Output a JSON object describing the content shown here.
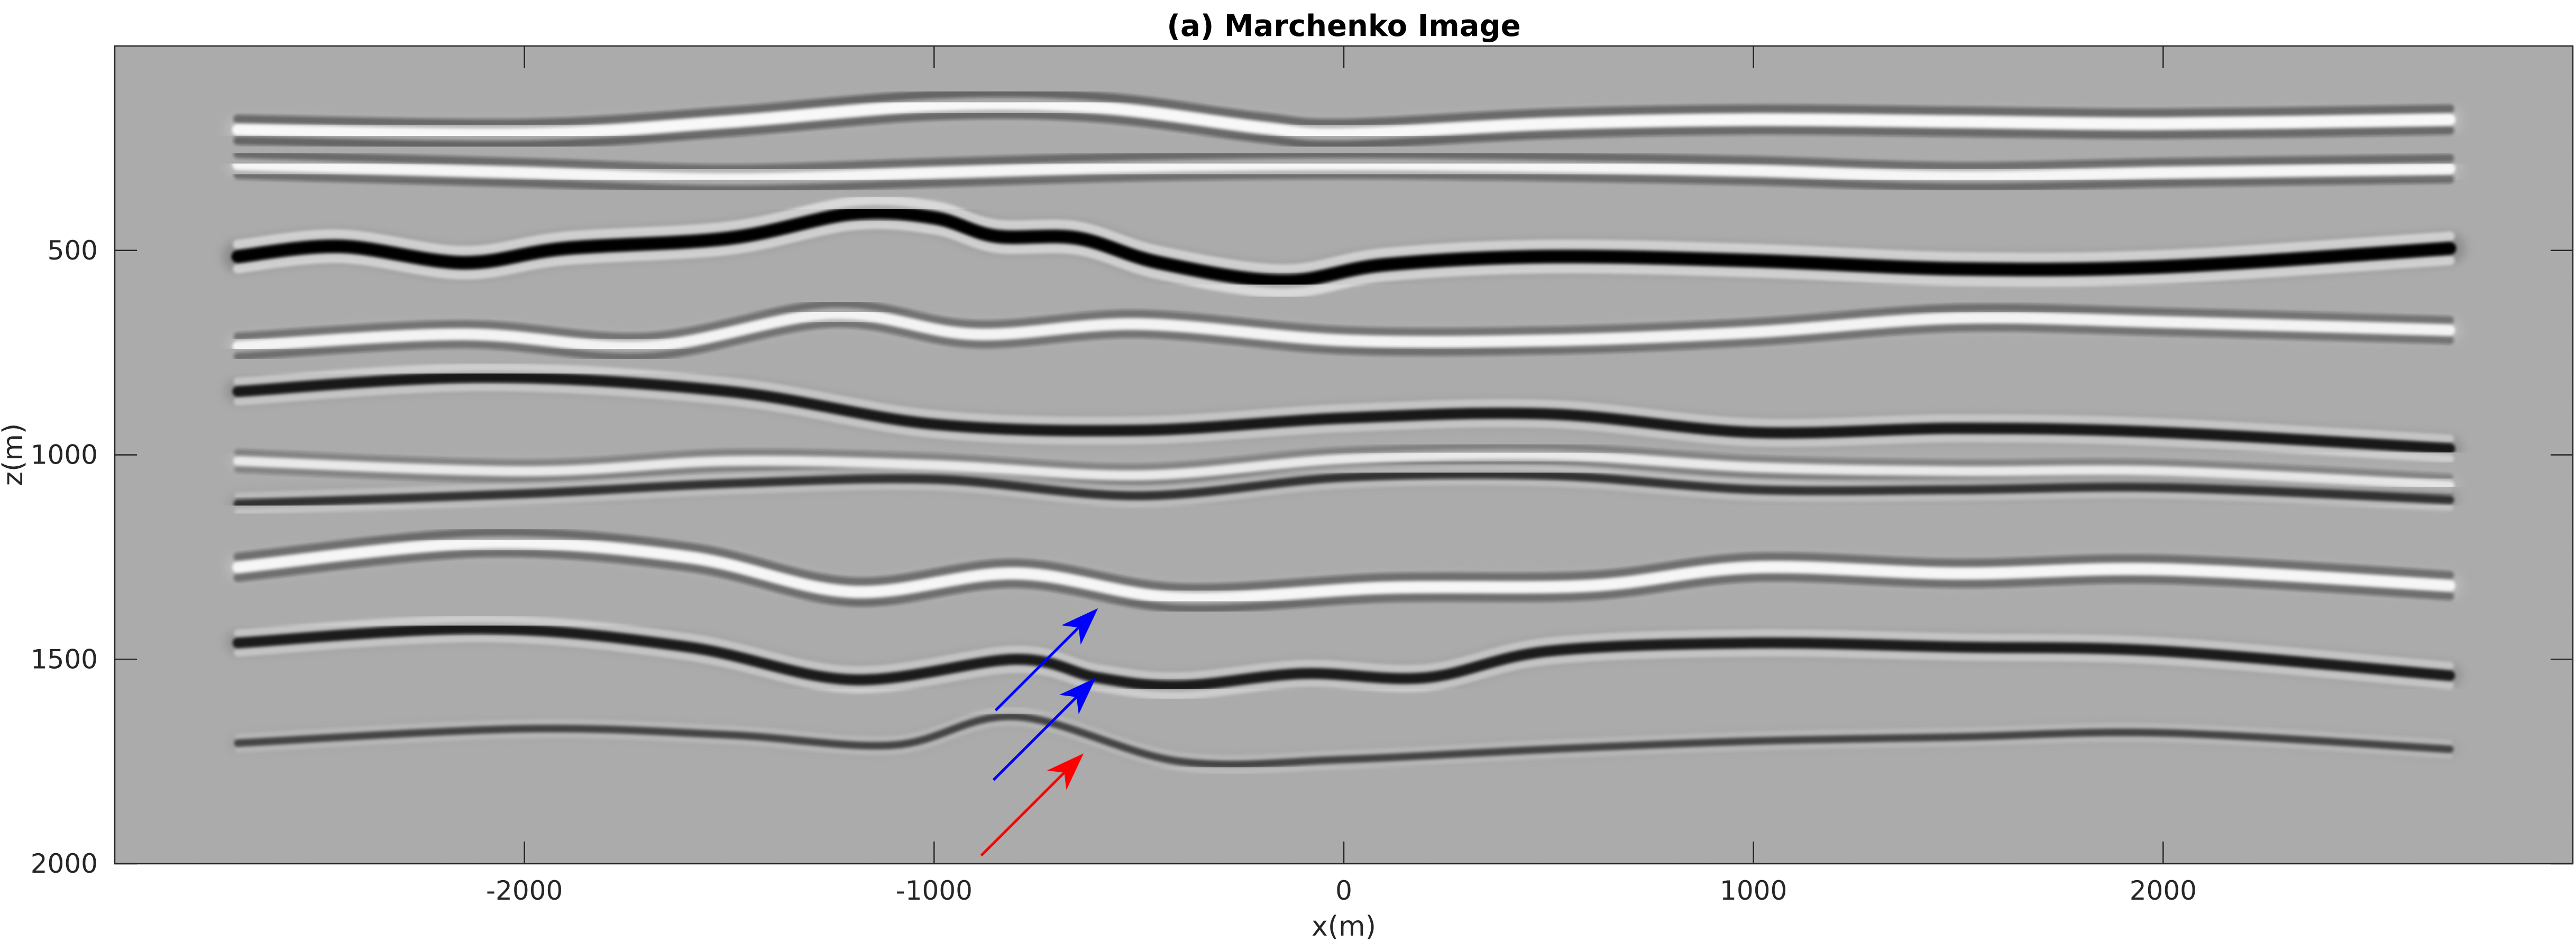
{
  "chart_data": {
    "type": "heatmap",
    "title": "(a) Marchenko Image",
    "xlabel": "x(m)",
    "ylabel": "z(m)",
    "xlim": [
      -3000,
      3000
    ],
    "ylim": [
      2000,
      0
    ],
    "y_reversed": true,
    "xticks": [
      -2000,
      -1000,
      0,
      1000,
      2000
    ],
    "xtick_labels": [
      "-2000",
      "-1000",
      "0",
      "1000",
      "2000"
    ],
    "yticks": [
      500,
      1000,
      1500,
      2000
    ],
    "ytick_labels": [
      "500",
      "1000",
      "1500",
      "2000"
    ],
    "colormap": "gray",
    "background_color": "#a9a9a9",
    "grid": false,
    "legend": "none",
    "reflectors": [
      {
        "polarity": "white",
        "strength": 0.85,
        "points": [
          [
            -2700,
            205
          ],
          [
            -2000,
            215
          ],
          [
            -1500,
            185
          ],
          [
            -1000,
            145
          ],
          [
            -600,
            150
          ],
          [
            -200,
            200
          ],
          [
            0,
            215
          ],
          [
            500,
            190
          ],
          [
            1000,
            180
          ],
          [
            1500,
            185
          ],
          [
            2000,
            190
          ],
          [
            2700,
            180
          ]
        ]
      },
      {
        "polarity": "white",
        "strength": 0.8,
        "points": [
          [
            -2700,
            290
          ],
          [
            -2000,
            310
          ],
          [
            -1500,
            325
          ],
          [
            -1000,
            310
          ],
          [
            -500,
            295
          ],
          [
            0,
            290
          ],
          [
            500,
            295
          ],
          [
            1000,
            305
          ],
          [
            1500,
            320
          ],
          [
            2000,
            310
          ],
          [
            2700,
            300
          ]
        ]
      },
      {
        "polarity": "black",
        "strength": 1.0,
        "points": [
          [
            -2700,
            515
          ],
          [
            -2450,
            490
          ],
          [
            -2150,
            530
          ],
          [
            -1900,
            495
          ],
          [
            -1500,
            470
          ],
          [
            -1200,
            410
          ],
          [
            -1000,
            420
          ],
          [
            -850,
            465
          ],
          [
            -650,
            470
          ],
          [
            -450,
            530
          ],
          [
            -150,
            575
          ],
          [
            100,
            535
          ],
          [
            500,
            515
          ],
          [
            1000,
            525
          ],
          [
            1500,
            545
          ],
          [
            2000,
            540
          ],
          [
            2700,
            495
          ]
        ]
      },
      {
        "polarity": "white",
        "strength": 0.75,
        "points": [
          [
            -2700,
            735
          ],
          [
            -2150,
            705
          ],
          [
            -1700,
            735
          ],
          [
            -1250,
            655
          ],
          [
            -900,
            705
          ],
          [
            -500,
            680
          ],
          [
            0,
            720
          ],
          [
            500,
            720
          ],
          [
            1000,
            700
          ],
          [
            1500,
            665
          ],
          [
            2000,
            675
          ],
          [
            2700,
            695
          ]
        ]
      },
      {
        "polarity": "black",
        "strength": 0.75,
        "points": [
          [
            -2700,
            845
          ],
          [
            -2100,
            810
          ],
          [
            -1500,
            845
          ],
          [
            -1000,
            925
          ],
          [
            -500,
            940
          ],
          [
            0,
            910
          ],
          [
            500,
            900
          ],
          [
            1000,
            945
          ],
          [
            1500,
            935
          ],
          [
            2000,
            945
          ],
          [
            2700,
            985
          ]
        ]
      },
      {
        "polarity": "white",
        "strength": 0.55,
        "points": [
          [
            -2700,
            1015
          ],
          [
            -2000,
            1040
          ],
          [
            -1500,
            1015
          ],
          [
            -1000,
            1025
          ],
          [
            -500,
            1050
          ],
          [
            0,
            1010
          ],
          [
            500,
            1000
          ],
          [
            1000,
            1030
          ],
          [
            1500,
            1040
          ],
          [
            2000,
            1040
          ],
          [
            2700,
            1075
          ]
        ]
      },
      {
        "polarity": "black",
        "strength": 0.5,
        "points": [
          [
            -2700,
            1120
          ],
          [
            -2000,
            1095
          ],
          [
            -1500,
            1070
          ],
          [
            -1000,
            1060
          ],
          [
            -500,
            1100
          ],
          [
            0,
            1055
          ],
          [
            500,
            1050
          ],
          [
            1000,
            1085
          ],
          [
            1500,
            1085
          ],
          [
            2000,
            1080
          ],
          [
            2700,
            1110
          ]
        ]
      },
      {
        "polarity": "white",
        "strength": 0.8,
        "points": [
          [
            -2700,
            1275
          ],
          [
            -2100,
            1215
          ],
          [
            -1600,
            1250
          ],
          [
            -1200,
            1335
          ],
          [
            -800,
            1290
          ],
          [
            -400,
            1350
          ],
          [
            100,
            1325
          ],
          [
            600,
            1320
          ],
          [
            1000,
            1275
          ],
          [
            1500,
            1290
          ],
          [
            2000,
            1280
          ],
          [
            2700,
            1320
          ]
        ]
      },
      {
        "polarity": "black",
        "strength": 0.72,
        "points": [
          [
            -2700,
            1460
          ],
          [
            -2100,
            1425
          ],
          [
            -1600,
            1470
          ],
          [
            -1200,
            1550
          ],
          [
            -800,
            1500
          ],
          [
            -600,
            1545
          ],
          [
            -400,
            1565
          ],
          [
            -100,
            1535
          ],
          [
            200,
            1545
          ],
          [
            500,
            1480
          ],
          [
            1000,
            1460
          ],
          [
            1500,
            1470
          ],
          [
            2000,
            1480
          ],
          [
            2700,
            1540
          ]
        ]
      },
      {
        "polarity": "black",
        "strength": 0.35,
        "points": [
          [
            -2700,
            1705
          ],
          [
            -2000,
            1670
          ],
          [
            -1500,
            1685
          ],
          [
            -1100,
            1710
          ],
          [
            -800,
            1640
          ],
          [
            -400,
            1750
          ],
          [
            0,
            1745
          ],
          [
            500,
            1720
          ],
          [
            1000,
            1700
          ],
          [
            1500,
            1690
          ],
          [
            2000,
            1680
          ],
          [
            2700,
            1720
          ]
        ]
      }
    ],
    "annotations": [
      {
        "type": "arrow",
        "color": "#0000ff",
        "from": [
          -850,
          1625
        ],
        "to": [
          -600,
          1375
        ]
      },
      {
        "type": "arrow",
        "color": "#0000ff",
        "from": [
          -855,
          1795
        ],
        "to": [
          -605,
          1545
        ]
      },
      {
        "type": "arrow",
        "color": "#ff0000",
        "from": [
          -885,
          1980
        ],
        "to": [
          -635,
          1730
        ]
      }
    ]
  }
}
